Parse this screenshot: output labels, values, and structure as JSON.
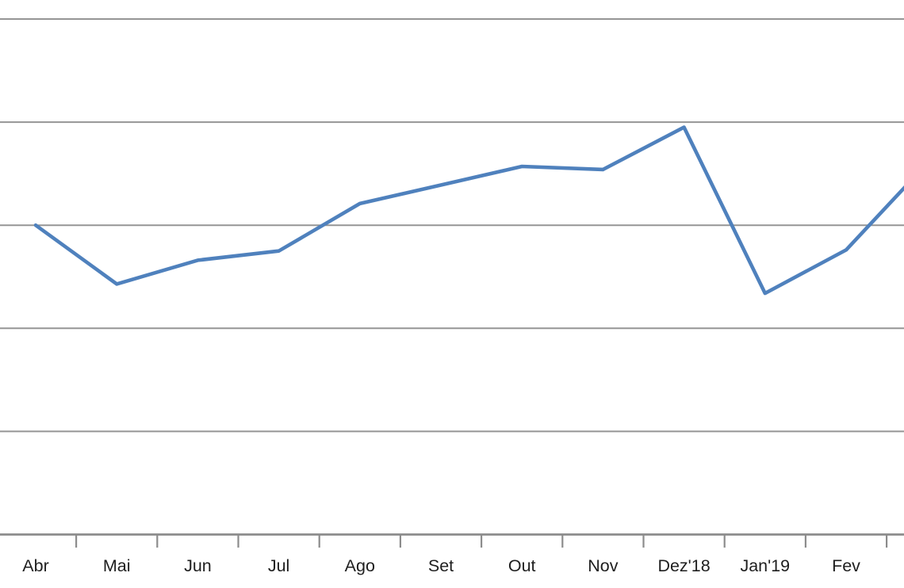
{
  "background_color": "#FFFFFF",
  "chart_data": {
    "type": "line",
    "title": "",
    "xlabel": "",
    "ylabel": "",
    "categories": [
      "Abr",
      "Mai",
      "Jun",
      "Jul",
      "Ago",
      "Set",
      "Out",
      "Nov",
      "Dez'18",
      "Jan'19",
      "Fev"
    ],
    "series": [
      {
        "name": "",
        "values": [
          3.0,
          2.43,
          2.66,
          2.75,
          3.21,
          3.39,
          3.57,
          3.54,
          3.95,
          2.34,
          2.76
        ],
        "next_point_offscreen_value": 3.6
      }
    ],
    "ylim": [
      0,
      5
    ],
    "y_gridline_values": [
      1,
      2,
      3,
      4,
      5
    ],
    "y_tick_labels": [],
    "y_tick_labels_visible": false,
    "legend_position": "none",
    "grid": "horizontal",
    "x_axis_has_tick_marks": true,
    "line_color": "#4F81BD",
    "gridline_color": "#959595",
    "axis_color": "#8C8C8C",
    "label_color": "#1E1E1E"
  }
}
